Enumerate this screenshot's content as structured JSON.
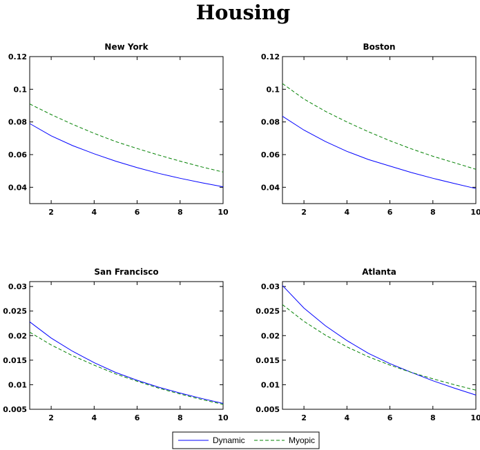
{
  "title": "Housing",
  "colors": {
    "dynamic": "#0000ff",
    "myopic": "#008000"
  },
  "legend": {
    "placement": "bottom-center",
    "entries": [
      {
        "label": "Dynamic",
        "color": "#0000ff",
        "style": "solid"
      },
      {
        "label": "Myopic",
        "color": "#008000",
        "style": "dashed"
      }
    ]
  },
  "chart_data": [
    {
      "type": "line",
      "title": "New York",
      "xlim": [
        1,
        10
      ],
      "ylim": [
        0.03,
        0.12
      ],
      "xticks": [
        2,
        4,
        6,
        8,
        10
      ],
      "yticks": [
        0.04,
        0.06,
        0.08,
        0.1,
        0.12
      ],
      "ytick_labels": [
        "0.04",
        "0.06",
        "0.08",
        "0.1",
        "0.12"
      ],
      "x": [
        1,
        2,
        3,
        4,
        5,
        6,
        7,
        8,
        9,
        10
      ],
      "series": [
        {
          "name": "Dynamic",
          "values": [
            0.079,
            0.0715,
            0.0655,
            0.0605,
            0.056,
            0.052,
            0.0485,
            0.0455,
            0.0428,
            0.0403
          ]
        },
        {
          "name": "Myopic",
          "values": [
            0.091,
            0.0845,
            0.0785,
            0.073,
            0.068,
            0.0637,
            0.0597,
            0.056,
            0.0525,
            0.0493
          ]
        }
      ]
    },
    {
      "type": "line",
      "title": "Boston",
      "xlim": [
        1,
        10
      ],
      "ylim": [
        0.03,
        0.12
      ],
      "xticks": [
        2,
        4,
        6,
        8,
        10
      ],
      "yticks": [
        0.04,
        0.06,
        0.08,
        0.1,
        0.12
      ],
      "ytick_labels": [
        "0.04",
        "0.06",
        "0.08",
        "0.1",
        "0.12"
      ],
      "x": [
        1,
        2,
        3,
        4,
        5,
        6,
        7,
        8,
        9,
        10
      ],
      "series": [
        {
          "name": "Dynamic",
          "values": [
            0.0835,
            0.075,
            0.068,
            0.062,
            0.057,
            0.053,
            0.049,
            0.0455,
            0.0423,
            0.0392
          ]
        },
        {
          "name": "Myopic",
          "values": [
            0.1035,
            0.094,
            0.0865,
            0.08,
            0.074,
            0.0685,
            0.0635,
            0.059,
            0.055,
            0.051
          ]
        }
      ]
    },
    {
      "type": "line",
      "title": "San Francisco",
      "xlim": [
        1,
        10
      ],
      "ylim": [
        0.005,
        0.031
      ],
      "xticks": [
        2,
        4,
        6,
        8,
        10
      ],
      "yticks": [
        0.005,
        0.01,
        0.015,
        0.02,
        0.025,
        0.03
      ],
      "ytick_labels": [
        "0.005",
        "0.01",
        "0.015",
        "0.02",
        "0.025",
        "0.03"
      ],
      "x": [
        1,
        2,
        3,
        4,
        5,
        6,
        7,
        8,
        9,
        10
      ],
      "series": [
        {
          "name": "Dynamic",
          "values": [
            0.0228,
            0.0195,
            0.0168,
            0.0145,
            0.0125,
            0.0109,
            0.0095,
            0.0083,
            0.0072,
            0.0062
          ]
        },
        {
          "name": "Myopic",
          "values": [
            0.0207,
            0.0181,
            0.0159,
            0.014,
            0.0122,
            0.0107,
            0.0093,
            0.0081,
            0.007,
            0.006
          ]
        }
      ]
    },
    {
      "type": "line",
      "title": "Atlanta",
      "xlim": [
        1,
        10
      ],
      "ylim": [
        0.005,
        0.031
      ],
      "xticks": [
        2,
        4,
        6,
        8,
        10
      ],
      "yticks": [
        0.005,
        0.01,
        0.015,
        0.02,
        0.025,
        0.03
      ],
      "ytick_labels": [
        "0.005",
        "0.01",
        "0.015",
        "0.02",
        "0.025",
        "0.03"
      ],
      "x": [
        1,
        2,
        3,
        4,
        5,
        6,
        7,
        8,
        9,
        10
      ],
      "series": [
        {
          "name": "Dynamic",
          "values": [
            0.0302,
            0.0256,
            0.022,
            0.019,
            0.0164,
            0.0143,
            0.0125,
            0.0108,
            0.0093,
            0.0079
          ]
        },
        {
          "name": "Myopic",
          "values": [
            0.0263,
            0.0229,
            0.0201,
            0.0177,
            0.0157,
            0.014,
            0.0125,
            0.0112,
            0.01,
            0.0089
          ]
        }
      ]
    }
  ]
}
